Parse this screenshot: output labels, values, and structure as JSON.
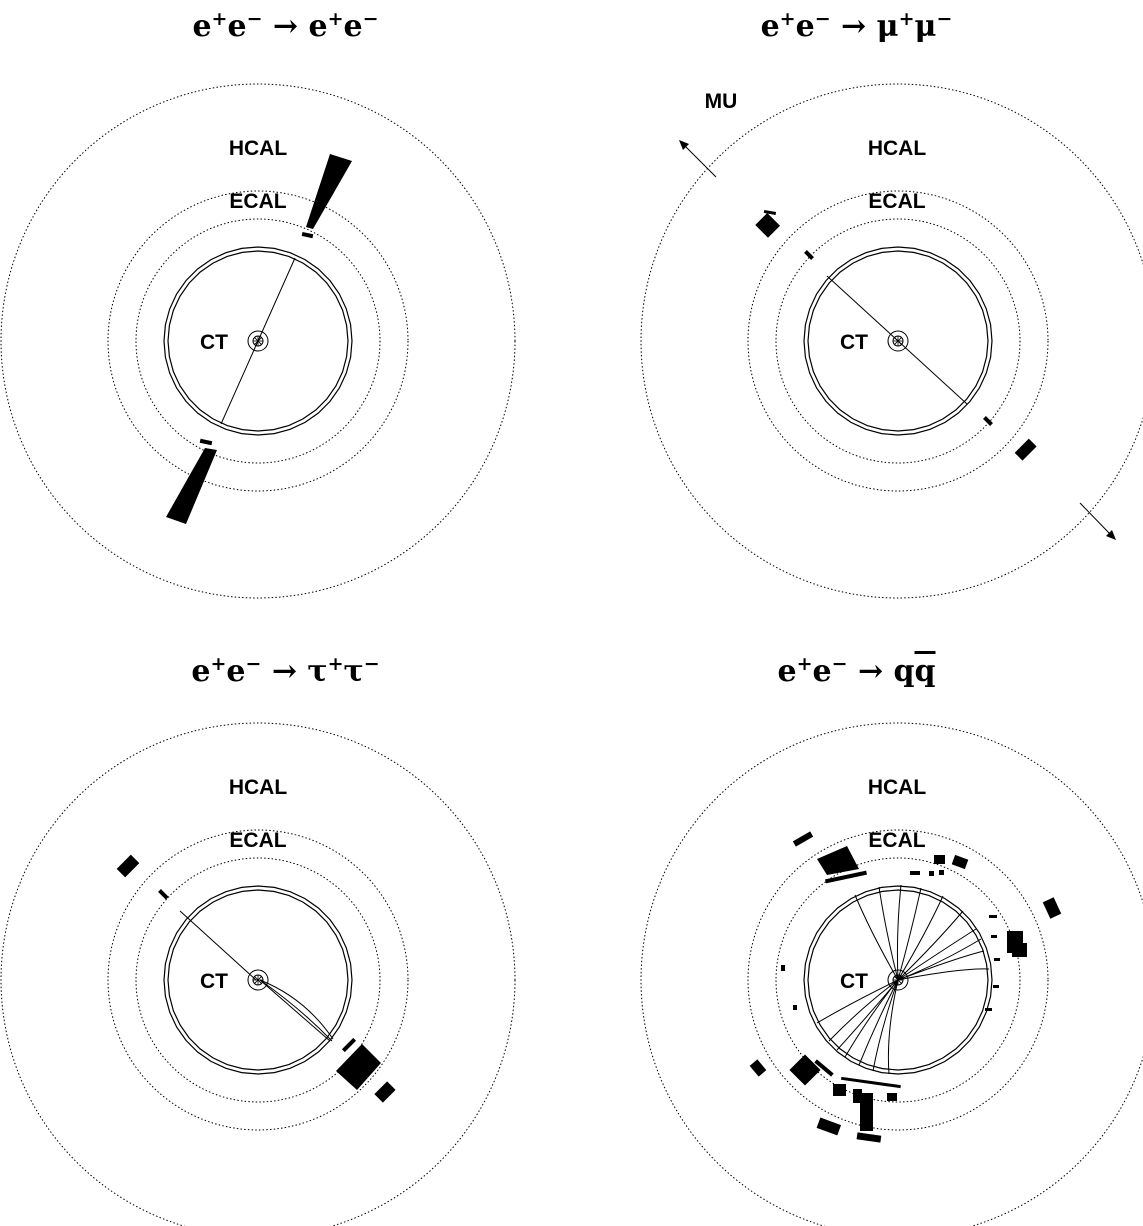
{
  "panels": [
    {
      "id": "ee",
      "title": {
        "pre": "e",
        "s1": "+",
        "mid": "e",
        "s2": "−",
        "arrow": " → ",
        "p1": "e",
        "s3": "+",
        "p2": "e",
        "s4": "−",
        "bar": ""
      },
      "labels": {
        "hcal": "HCAL",
        "ecal": "ECAL",
        "ct": "CT",
        "mu": ""
      }
    },
    {
      "id": "mumu",
      "title": {
        "pre": "e",
        "s1": "+",
        "mid": "e",
        "s2": "−",
        "arrow": " → ",
        "p1": "μ",
        "s3": "+",
        "p2": "μ",
        "s4": "−",
        "bar": ""
      },
      "labels": {
        "hcal": "HCAL",
        "ecal": "ECAL",
        "ct": "CT",
        "mu": "MU"
      }
    },
    {
      "id": "tautau",
      "title": {
        "pre": "e",
        "s1": "+",
        "mid": "e",
        "s2": "−",
        "arrow": " → ",
        "p1": "τ",
        "s3": "+",
        "p2": "τ",
        "s4": "−",
        "bar": ""
      },
      "labels": {
        "hcal": "HCAL",
        "ecal": "ECAL",
        "ct": "CT",
        "mu": ""
      }
    },
    {
      "id": "qq",
      "title": {
        "pre": "e",
        "s1": "+",
        "mid": "e",
        "s2": "−",
        "arrow": " → ",
        "p1": "q",
        "s3": "",
        "p2": "",
        "s4": "",
        "bar": "q"
      },
      "labels": {
        "hcal": "HCAL",
        "ecal": "ECAL",
        "ct": "CT",
        "mu": ""
      }
    }
  ]
}
